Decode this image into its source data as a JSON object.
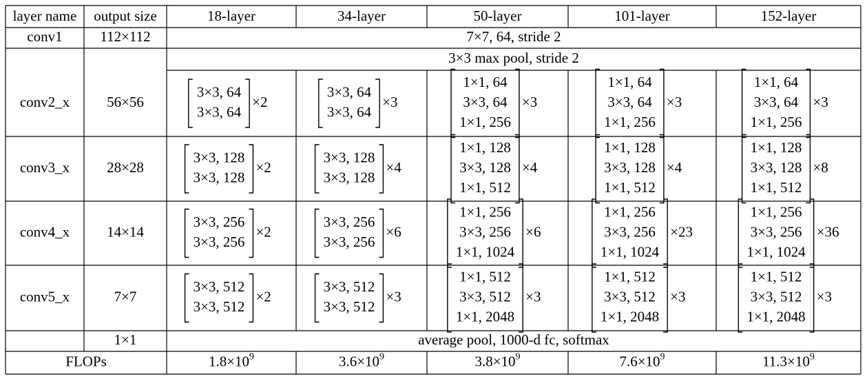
{
  "table": {
    "header": [
      "layer name",
      "output size",
      "18-layer",
      "34-layer",
      "50-layer",
      "101-layer",
      "152-layer"
    ],
    "rows": [
      {
        "name": "conv1",
        "output_size": "112×112",
        "shared": "7×7, 64, stride 2"
      },
      {
        "name": "conv2_x",
        "output_size": "56×56",
        "shared": "3×3 max pool, stride 2",
        "blocks": [
          {
            "lines": [
              "3×3, 64",
              "3×3, 64"
            ],
            "repeat": "×2"
          },
          {
            "lines": [
              "3×3, 64",
              "3×3, 64"
            ],
            "repeat": "×3"
          },
          {
            "lines": [
              "1×1, 64",
              "3×3, 64",
              "1×1, 256"
            ],
            "repeat": "×3"
          },
          {
            "lines": [
              "1×1, 64",
              "3×3, 64",
              "1×1, 256"
            ],
            "repeat": "×3"
          },
          {
            "lines": [
              "1×1, 64",
              "3×3, 64",
              "1×1, 256"
            ],
            "repeat": "×3"
          }
        ]
      },
      {
        "name": "conv3_x",
        "output_size": "28×28",
        "blocks": [
          {
            "lines": [
              "3×3, 128",
              "3×3, 128"
            ],
            "repeat": "×2"
          },
          {
            "lines": [
              "3×3, 128",
              "3×3, 128"
            ],
            "repeat": "×4"
          },
          {
            "lines": [
              "1×1, 128",
              "3×3, 128",
              "1×1, 512"
            ],
            "repeat": "×4"
          },
          {
            "lines": [
              "1×1, 128",
              "3×3, 128",
              "1×1, 512"
            ],
            "repeat": "×4"
          },
          {
            "lines": [
              "1×1, 128",
              "3×3, 128",
              "1×1, 512"
            ],
            "repeat": "×8"
          }
        ]
      },
      {
        "name": "conv4_x",
        "output_size": "14×14",
        "blocks": [
          {
            "lines": [
              "3×3, 256",
              "3×3, 256"
            ],
            "repeat": "×2"
          },
          {
            "lines": [
              "3×3, 256",
              "3×3, 256"
            ],
            "repeat": "×6"
          },
          {
            "lines": [
              "1×1, 256",
              "3×3, 256",
              "1×1, 1024"
            ],
            "repeat": "×6"
          },
          {
            "lines": [
              "1×1, 256",
              "3×3, 256",
              "1×1, 1024"
            ],
            "repeat": "×23"
          },
          {
            "lines": [
              "1×1, 256",
              "3×3, 256",
              "1×1, 1024"
            ],
            "repeat": "×36"
          }
        ]
      },
      {
        "name": "conv5_x",
        "output_size": "7×7",
        "blocks": [
          {
            "lines": [
              "3×3, 512",
              "3×3, 512"
            ],
            "repeat": "×2"
          },
          {
            "lines": [
              "3×3, 512",
              "3×3, 512"
            ],
            "repeat": "×3"
          },
          {
            "lines": [
              "1×1, 512",
              "3×3, 512",
              "1×1, 2048"
            ],
            "repeat": "×3"
          },
          {
            "lines": [
              "1×1, 512",
              "3×3, 512",
              "1×1, 2048"
            ],
            "repeat": "×3"
          },
          {
            "lines": [
              "1×1, 512",
              "3×3, 512",
              "1×1, 2048"
            ],
            "repeat": "×3"
          }
        ]
      },
      {
        "output_size": "1×1",
        "shared": "average pool, 1000-d fc, softmax"
      },
      {
        "name": "FLOPs",
        "flops": [
          {
            "base": "1.8×10",
            "exponent": "9"
          },
          {
            "base": "3.6×10",
            "exponent": "9"
          },
          {
            "base": "3.8×10",
            "exponent": "9"
          },
          {
            "base": "7.6×10",
            "exponent": "9"
          },
          {
            "base": "11.3×10",
            "exponent": "9"
          }
        ]
      }
    ]
  }
}
